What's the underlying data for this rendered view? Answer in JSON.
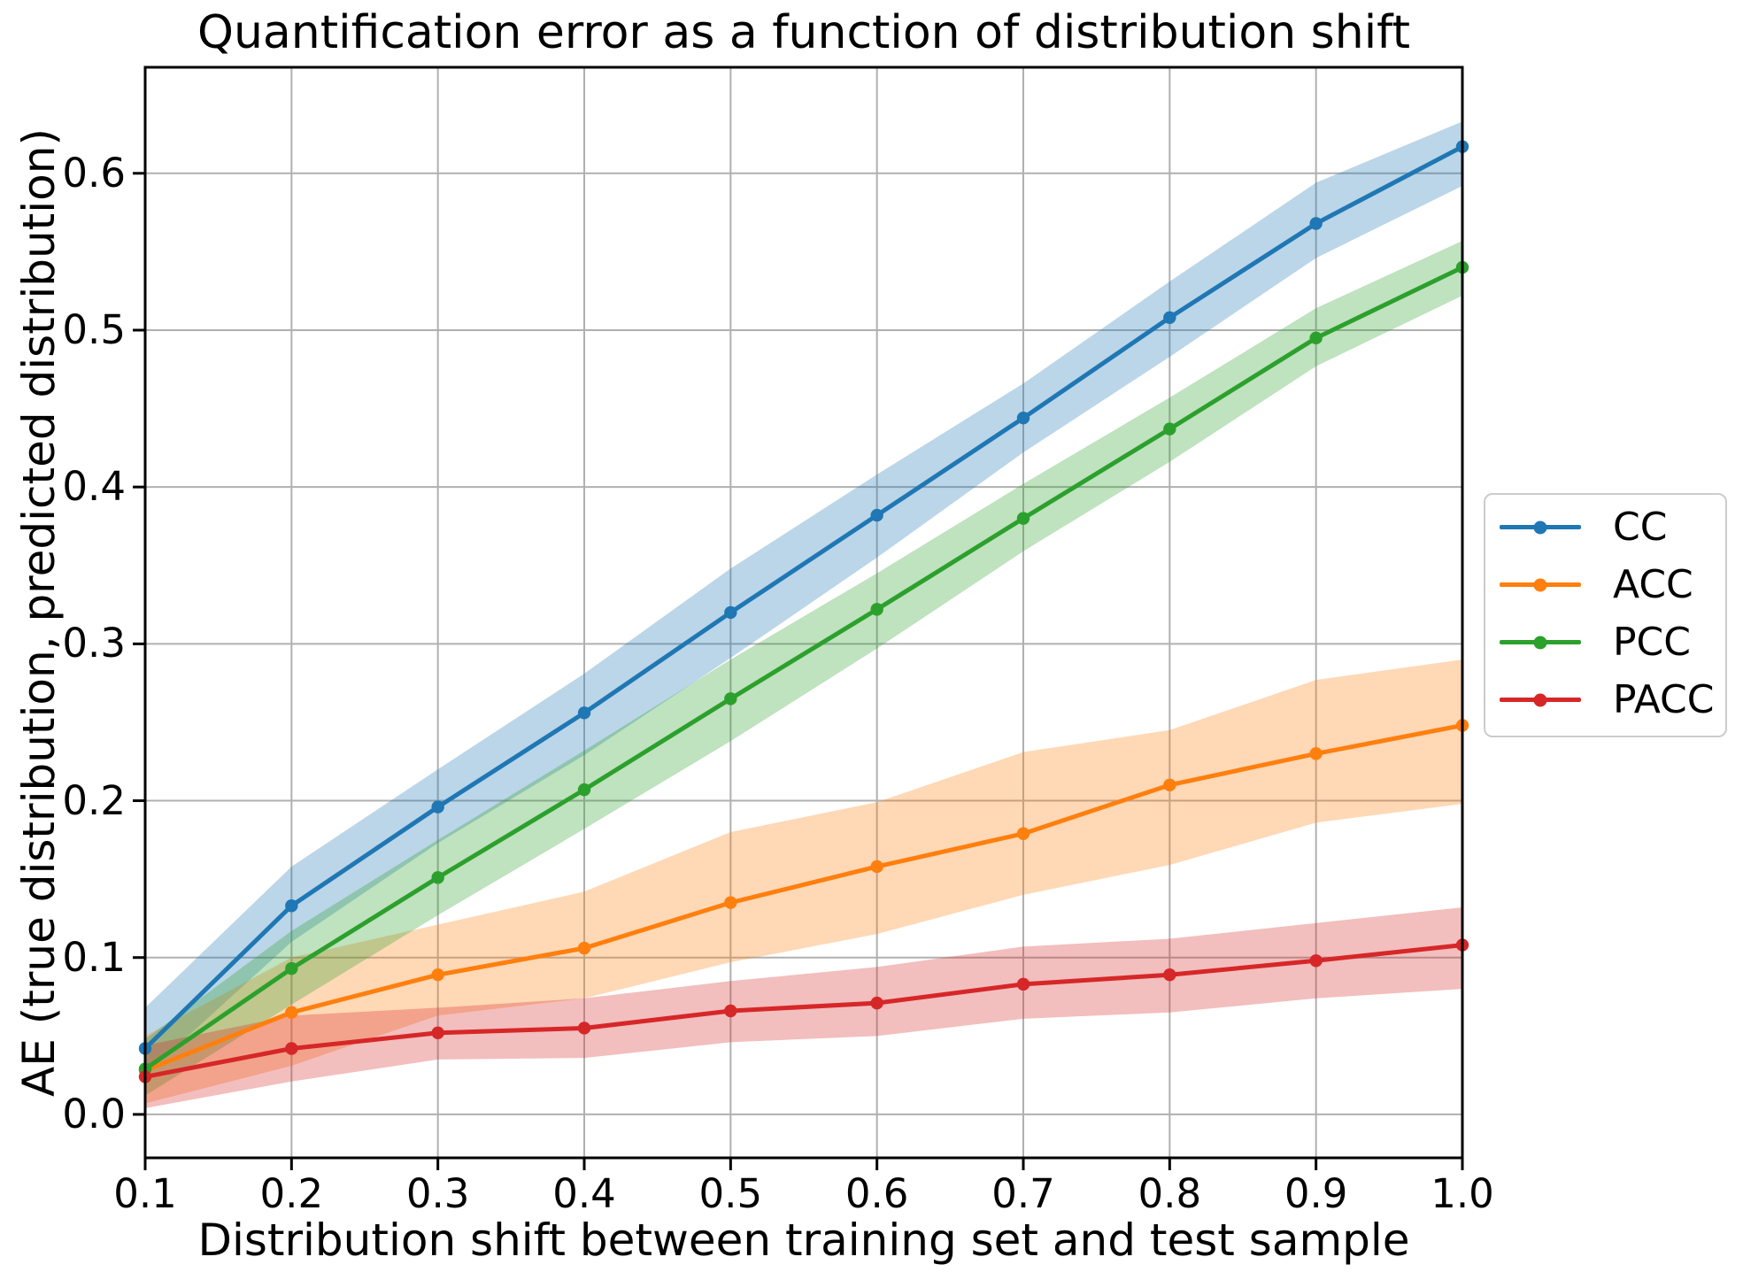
{
  "chart_data": {
    "type": "line",
    "title": "Quantification error as a function of distribution shift",
    "xlabel": "Distribution shift between training set and test sample",
    "ylabel": "AE (true distribution, predicted distribution)",
    "x": [
      0.1,
      0.2,
      0.3,
      0.4,
      0.5,
      0.6,
      0.7,
      0.8,
      0.9,
      1.0
    ],
    "x_tick_labels": [
      "0.1",
      "0.2",
      "0.3",
      "0.4",
      "0.5",
      "0.6",
      "0.7",
      "0.8",
      "0.9",
      "1.0"
    ],
    "y_tick_labels": [
      "0.0",
      "0.1",
      "0.2",
      "0.3",
      "0.4",
      "0.5",
      "0.6"
    ],
    "xlim": [
      0.1,
      1.0
    ],
    "ylim": [
      -0.0277,
      0.6676
    ],
    "grid": true,
    "grid_color": "#b0b0b0",
    "band_opacity": 0.3,
    "legend_position": "right outside axes, vertically centered",
    "series": [
      {
        "name": "CC",
        "color": "#1f77b4",
        "values": [
          0.042,
          0.133,
          0.196,
          0.256,
          0.32,
          0.382,
          0.444,
          0.508,
          0.568,
          0.617
        ],
        "band_upper": [
          0.068,
          0.158,
          0.22,
          0.281,
          0.348,
          0.408,
          0.466,
          0.531,
          0.594,
          0.633
        ],
        "band_lower": [
          0.025,
          0.11,
          0.173,
          0.229,
          0.291,
          0.355,
          0.422,
          0.483,
          0.546,
          0.592
        ]
      },
      {
        "name": "ACC",
        "color": "#ff7f0e",
        "values": [
          0.028,
          0.065,
          0.089,
          0.106,
          0.135,
          0.158,
          0.179,
          0.21,
          0.23,
          0.248
        ],
        "band_upper": [
          0.05,
          0.1,
          0.121,
          0.142,
          0.18,
          0.199,
          0.231,
          0.245,
          0.277,
          0.29
        ],
        "band_lower": [
          0.007,
          0.031,
          0.063,
          0.074,
          0.097,
          0.115,
          0.14,
          0.159,
          0.186,
          0.198
        ]
      },
      {
        "name": "PCC",
        "color": "#2ca02c",
        "values": [
          0.029,
          0.093,
          0.151,
          0.207,
          0.265,
          0.322,
          0.38,
          0.437,
          0.495,
          0.54
        ],
        "band_upper": [
          0.048,
          0.117,
          0.175,
          0.232,
          0.29,
          0.345,
          0.402,
          0.457,
          0.514,
          0.557
        ],
        "band_lower": [
          0.012,
          0.07,
          0.127,
          0.182,
          0.238,
          0.297,
          0.359,
          0.416,
          0.477,
          0.522
        ]
      },
      {
        "name": "PACC",
        "color": "#d62728",
        "values": [
          0.024,
          0.042,
          0.052,
          0.055,
          0.066,
          0.071,
          0.083,
          0.089,
          0.098,
          0.108
        ],
        "band_upper": [
          0.044,
          0.063,
          0.068,
          0.074,
          0.085,
          0.094,
          0.107,
          0.112,
          0.122,
          0.132
        ],
        "band_lower": [
          0.004,
          0.021,
          0.035,
          0.036,
          0.046,
          0.05,
          0.061,
          0.065,
          0.074,
          0.08
        ]
      }
    ]
  },
  "legend": {
    "items": [
      {
        "label": "CC",
        "color": "#1f77b4"
      },
      {
        "label": "ACC",
        "color": "#ff7f0e"
      },
      {
        "label": "PCC",
        "color": "#2ca02c"
      },
      {
        "label": "PACC",
        "color": "#d62728"
      }
    ]
  }
}
